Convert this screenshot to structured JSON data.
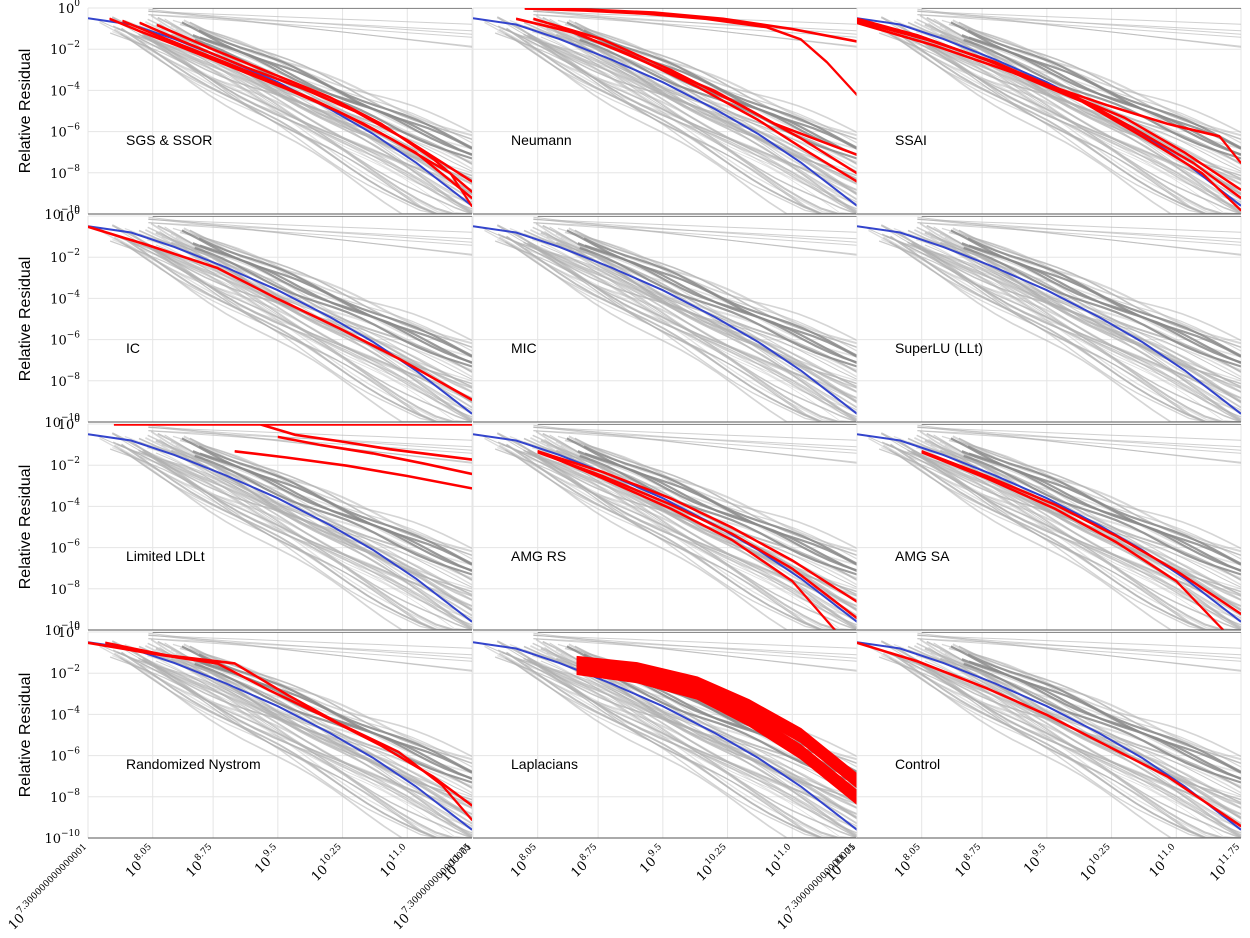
{
  "chart_data": {
    "type": "line",
    "layout": "4x3 small multiples",
    "ylabel": "Relative Residual",
    "y_scale": "log",
    "ylim": [
      1e-10,
      1
    ],
    "y_ticks": [
      {
        "base": "10",
        "exp": "0",
        "value": 1
      },
      {
        "base": "10",
        "exp": "−2",
        "value": 0.01
      },
      {
        "base": "10",
        "exp": "−4",
        "value": 0.0001
      },
      {
        "base": "10",
        "exp": "−6",
        "value": 1e-06
      },
      {
        "base": "10",
        "exp": "−8",
        "value": 1e-08
      },
      {
        "base": "10",
        "exp": "−10",
        "value": 1e-10
      }
    ],
    "x_scale": "log",
    "xlim_log10": [
      7.3,
      11.75
    ],
    "x_ticks": [
      {
        "base": "10",
        "exp": "7.300000000000001",
        "value_log10": 7.3
      },
      {
        "base": "10",
        "exp": "8.05",
        "value_log10": 8.05
      },
      {
        "base": "10",
        "exp": "8.75",
        "value_log10": 8.75
      },
      {
        "base": "10",
        "exp": "9.5",
        "value_log10": 9.5
      },
      {
        "base": "10",
        "exp": "10.25",
        "value_log10": 10.25
      },
      {
        "base": "10",
        "exp": "11.0",
        "value_log10": 11.0
      },
      {
        "base": "10",
        "exp": "11.75",
        "value_log10": 11.75
      }
    ],
    "grid": true,
    "colors": {
      "highlight": "#ff0000",
      "reference": "#3344cc",
      "background": "#9e9e9e",
      "grid": "#e5e5e5"
    },
    "panels": [
      {
        "label": "SGS & SSOR",
        "highlight": [
          {
            "x": [
              7.55,
              7.9,
              8.4,
              9.0,
              9.6,
              10.2,
              10.8,
              11.5,
              11.75
            ],
            "y": [
              -0.5,
              -1.1,
              -1.9,
              -2.9,
              -3.9,
              -5.0,
              -6.3,
              -8.0,
              -9.6
            ]
          },
          {
            "x": [
              7.7,
              8.1,
              8.7,
              9.3,
              9.9,
              10.5,
              11.1,
              11.75
            ],
            "y": [
              -0.6,
              -1.3,
              -2.3,
              -3.3,
              -4.4,
              -5.6,
              -7.0,
              -9.2
            ]
          },
          {
            "x": [
              7.9,
              8.4,
              9.1,
              9.8,
              10.4,
              11.0,
              11.75
            ],
            "y": [
              -0.7,
              -1.6,
              -2.8,
              -3.9,
              -5.0,
              -6.4,
              -8.4
            ]
          },
          {
            "x": [
              8.1,
              8.7,
              9.4,
              10.1,
              10.7,
              11.3,
              11.75
            ],
            "y": [
              -0.8,
              -1.9,
              -3.1,
              -4.3,
              -5.6,
              -7.3,
              -8.9
            ]
          }
        ]
      },
      {
        "label": "Neumann",
        "highlight": [
          {
            "x": [
              7.9,
              8.6,
              9.4,
              10.2,
              11.0,
              11.75
            ],
            "y": [
              0.0,
              -0.05,
              -0.2,
              -0.5,
              -1.0,
              -1.6
            ]
          },
          {
            "x": [
              7.9,
              8.6,
              9.3,
              10.0,
              10.7,
              11.1,
              11.4,
              11.75
            ],
            "y": [
              0.0,
              -0.1,
              -0.25,
              -0.5,
              -0.9,
              -1.5,
              -2.6,
              -4.2
            ]
          },
          {
            "x": [
              7.8,
              8.5,
              9.3,
              10.1,
              10.8,
              11.75
            ],
            "y": [
              -0.5,
              -1.2,
              -2.6,
              -4.0,
              -5.6,
              -7.1
            ]
          },
          {
            "x": [
              8.0,
              8.8,
              9.6,
              10.4,
              11.1,
              11.75
            ],
            "y": [
              -0.5,
              -1.5,
              -3.0,
              -4.7,
              -6.3,
              -8.0
            ]
          },
          {
            "x": [
              8.3,
              9.1,
              9.9,
              10.6,
              11.2,
              11.75
            ],
            "y": [
              -0.9,
              -2.2,
              -3.8,
              -5.4,
              -7.0,
              -8.4
            ]
          }
        ]
      },
      {
        "label": "SSAI",
        "highlight": [
          {
            "x": [
              7.3,
              8.0,
              8.8,
              9.5,
              10.2,
              10.9,
              11.5,
              11.75
            ],
            "y": [
              -0.5,
              -1.3,
              -2.5,
              -3.7,
              -4.7,
              -5.6,
              -6.2,
              -7.5
            ]
          },
          {
            "x": [
              7.3,
              8.1,
              8.9,
              9.6,
              10.4,
              11.1,
              11.75
            ],
            "y": [
              -0.6,
              -1.5,
              -2.6,
              -3.9,
              -5.3,
              -7.0,
              -8.8
            ]
          },
          {
            "x": [
              7.3,
              8.2,
              9.0,
              9.8,
              10.5,
              11.2,
              11.75
            ],
            "y": [
              -0.6,
              -1.6,
              -2.8,
              -4.2,
              -5.8,
              -7.5,
              -9.2
            ]
          },
          {
            "x": [
              7.3,
              8.2,
              9.1,
              9.9,
              10.6,
              11.3,
              11.75
            ],
            "y": [
              -0.7,
              -1.8,
              -3.1,
              -4.5,
              -6.2,
              -8.0,
              -9.8
            ]
          }
        ]
      },
      {
        "label": "IC",
        "highlight": [
          {
            "x": [
              7.3,
              8.0,
              8.8,
              9.5,
              10.2,
              10.9,
              11.75
            ],
            "y": [
              -0.5,
              -1.4,
              -2.5,
              -4.0,
              -5.4,
              -6.9,
              -8.9
            ]
          }
        ]
      },
      {
        "label": "MIC",
        "highlight": []
      },
      {
        "label": "SuperLU (LLt)",
        "highlight": []
      },
      {
        "label": "Limited LDLt",
        "highlight": [
          {
            "x": [
              7.6,
              8.5,
              9.5,
              10.5,
              11.75
            ],
            "y": [
              0.0,
              0.0,
              0.0,
              0.0,
              0.0
            ]
          },
          {
            "x": [
              9.3,
              9.7,
              10.2,
              10.8,
              11.75
            ],
            "y": [
              0.0,
              -0.5,
              -0.8,
              -1.2,
              -1.7
            ]
          },
          {
            "x": [
              9.5,
              10.0,
              10.6,
              11.2,
              11.75
            ],
            "y": [
              -0.6,
              -1.0,
              -1.4,
              -1.9,
              -2.4
            ]
          },
          {
            "x": [
              9.0,
              9.6,
              10.3,
              11.0,
              11.75
            ],
            "y": [
              -1.3,
              -1.6,
              -2.0,
              -2.5,
              -3.1
            ]
          }
        ]
      },
      {
        "label": "AMG RS",
        "highlight": [
          {
            "x": [
              8.05,
              8.8,
              9.6,
              10.3,
              11.0,
              11.75
            ],
            "y": [
              -1.3,
              -2.3,
              -3.6,
              -5.0,
              -6.6,
              -8.6
            ]
          },
          {
            "x": [
              8.05,
              8.8,
              9.6,
              10.3,
              11.0,
              11.75
            ],
            "y": [
              -1.35,
              -2.5,
              -3.9,
              -5.3,
              -7.0,
              -9.4
            ]
          },
          {
            "x": [
              8.05,
              8.8,
              9.6,
              10.3,
              11.0,
              11.5
            ],
            "y": [
              -1.3,
              -2.6,
              -4.1,
              -5.6,
              -7.6,
              -10.0
            ]
          }
        ]
      },
      {
        "label": "AMG SA",
        "highlight": [
          {
            "x": [
              8.05,
              8.8,
              9.6,
              10.3,
              11.0,
              11.75
            ],
            "y": [
              -1.3,
              -2.5,
              -3.9,
              -5.4,
              -7.1,
              -9.2
            ]
          },
          {
            "x": [
              8.05,
              8.8,
              9.6,
              10.3,
              11.0,
              11.55
            ],
            "y": [
              -1.35,
              -2.6,
              -4.1,
              -5.7,
              -7.6,
              -10.0
            ]
          }
        ]
      },
      {
        "label": "Randomized Nystrom",
        "highlight": [
          {
            "x": [
              7.3,
              8.0,
              8.8,
              9.4,
              10.0,
              10.7,
              11.3,
              11.75
            ],
            "y": [
              -0.5,
              -1.0,
              -1.5,
              -2.8,
              -4.0,
              -5.5,
              -7.0,
              -8.4
            ]
          },
          {
            "x": [
              7.5,
              8.2,
              9.0,
              9.6,
              10.2,
              10.9,
              11.4,
              11.75
            ],
            "y": [
              -0.5,
              -1.1,
              -1.5,
              -3.0,
              -4.4,
              -5.8,
              -7.4,
              -9.1
            ]
          }
        ]
      },
      {
        "label": "Laplacians",
        "highlight": [
          {
            "x": [
              8.5,
              9.2,
              9.9,
              10.5,
              11.1,
              11.75
            ],
            "y": [
              -1.7,
              -2.1,
              -2.9,
              -4.2,
              -5.8,
              -8.0
            ]
          },
          {
            "x": [
              8.5,
              9.2,
              9.9,
              10.5,
              11.1,
              11.75
            ],
            "y": [
              -1.5,
              -1.8,
              -2.5,
              -3.6,
              -5.0,
              -7.2
            ]
          }
        ]
      },
      {
        "label": "Control",
        "highlight": [
          {
            "x": [
              7.3,
              8.0,
              8.8,
              9.5,
              10.2,
              10.9,
              11.75
            ],
            "y": [
              -0.5,
              -1.4,
              -2.7,
              -4.0,
              -5.5,
              -7.0,
              -9.4
            ]
          }
        ]
      }
    ],
    "reference_series_log": {
      "x": [
        7.3,
        7.8,
        8.3,
        8.9,
        9.5,
        10.1,
        10.6,
        11.1,
        11.75
      ],
      "y": [
        -0.5,
        -0.8,
        -1.5,
        -2.5,
        -3.6,
        -4.9,
        -6.1,
        -7.5,
        -9.6
      ]
    }
  }
}
